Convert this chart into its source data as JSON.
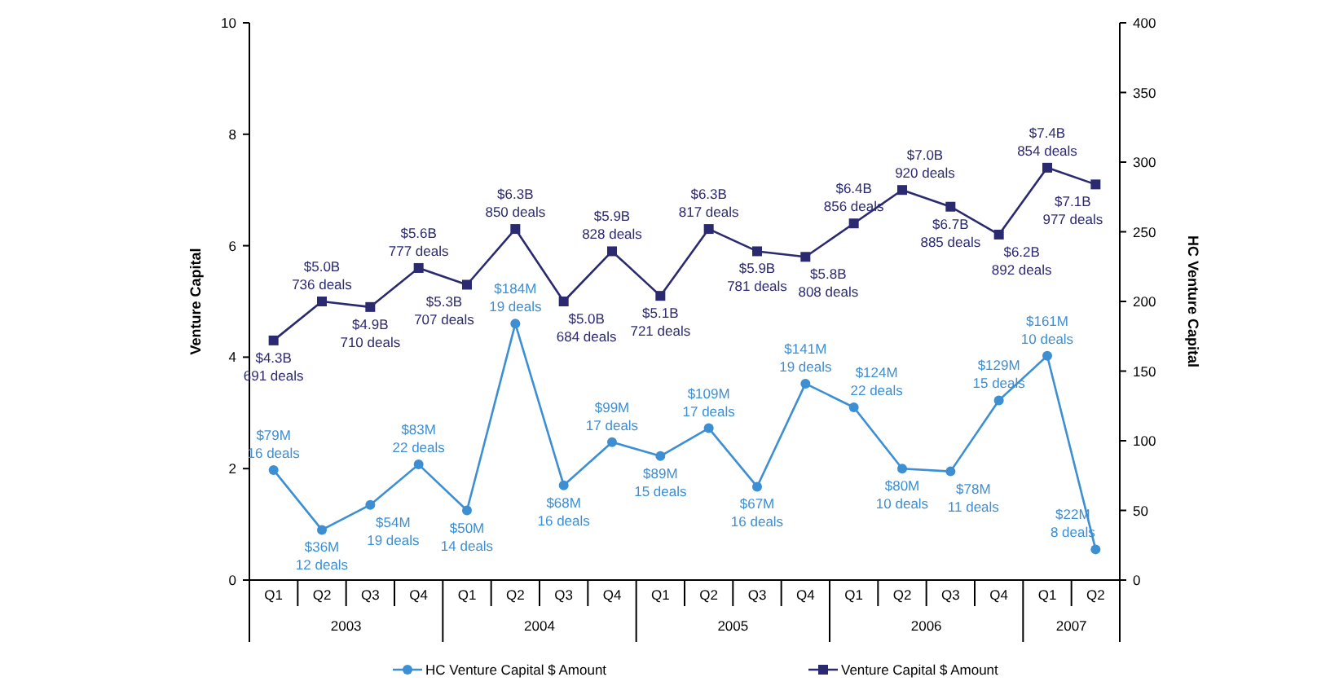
{
  "chart_data": {
    "type": "line",
    "ylabel": "Venture Capital",
    "y2label": "HC Venture Capital",
    "categories": [
      "Q1",
      "Q2",
      "Q3",
      "Q4",
      "Q1",
      "Q2",
      "Q3",
      "Q4",
      "Q1",
      "Q2",
      "Q3",
      "Q4",
      "Q1",
      "Q2",
      "Q3",
      "Q4",
      "Q1",
      "Q2"
    ],
    "ylim": [
      0,
      10
    ],
    "yticks": [
      0,
      2,
      4,
      6,
      8,
      10
    ],
    "y2lim": [
      0,
      400
    ],
    "y2ticks": [
      0,
      50,
      100,
      150,
      200,
      250,
      300,
      350,
      400
    ],
    "grid": false,
    "legend": "bottom",
    "line_style": "solid",
    "series": [
      {
        "name": "HC Venture Capital $ Amount",
        "color": "#3d8fd4",
        "axis": "y2",
        "marker": "circle",
        "values": [
          79,
          36,
          54,
          83,
          50,
          184,
          68,
          99,
          89,
          109,
          67,
          141,
          124,
          80,
          78,
          129,
          161,
          22
        ],
        "value_labels": [
          "$79M",
          "$36M",
          "$54M",
          "$83M",
          "$50M",
          "$184M",
          "$68M",
          "$99M",
          "$89M",
          "$109M",
          "$67M",
          "$141M",
          "$124M",
          "$80M",
          "$78M",
          "$129M",
          "$161M",
          "$22M"
        ]
      },
      {
        "name": "Venture Capital $ Amount",
        "color": "#2b2a70",
        "axis": "y",
        "marker": "square",
        "values": [
          4.3,
          5.0,
          4.9,
          5.6,
          5.3,
          6.3,
          5.0,
          5.9,
          5.1,
          6.3,
          5.9,
          5.8,
          6.4,
          7.0,
          6.7,
          6.2,
          7.4,
          7.1
        ],
        "value_labels": [
          "$4.3B",
          "$5.0B",
          "$4.9B",
          "$5.6B",
          "$5.3B",
          "$6.3B",
          "$5.0B",
          "$5.9B",
          "$5.1B",
          "$6.3B",
          "$5.9B",
          "$5.8B",
          "$6.4B",
          "$7.0B",
          "$6.7B",
          "$6.2B",
          "$7.4B",
          "$7.1B"
        ]
      }
    ],
    "annotations": [
      "2003",
      "2004",
      "2005",
      "2006",
      "2007",
      "16 deals",
      "12 deals",
      "19 deals",
      "22 deals",
      "14 deals",
      "19 deals",
      "16 deals",
      "17 deals",
      "15 deals",
      "17 deals",
      "16 deals",
      "19 deals",
      "22 deals",
      "10 deals",
      "11 deals",
      "15 deals",
      "10 deals",
      "8 deals",
      "691 deals",
      "736 deals",
      "710 deals",
      "777 deals",
      "707 deals",
      "850 deals",
      "684 deals",
      "828 deals",
      "721 deals",
      "817 deals",
      "781 deals",
      "808 deals",
      "856 deals",
      "920 deals",
      "885 deals",
      "892 deals",
      "854 deals",
      "977 deals"
    ]
  }
}
